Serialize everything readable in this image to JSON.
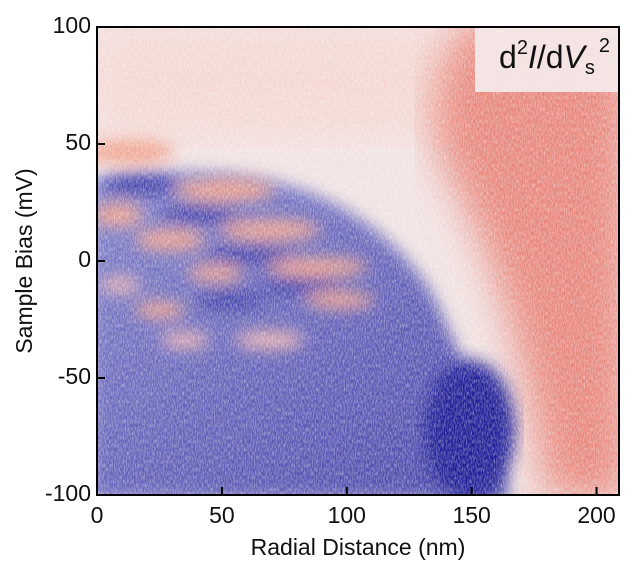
{
  "chart_data": {
    "type": "heatmap",
    "x_label": "Radial Distance (nm)",
    "y_label": "Sample Bias (mV)",
    "annotation": [
      "d",
      "2",
      "I",
      "/d",
      "V",
      "s",
      "2"
    ],
    "xlim": [
      0,
      209
    ],
    "xticks": [
      0,
      50,
      100,
      150,
      200
    ],
    "ylim": [
      -100,
      100
    ],
    "yticks": [
      -100,
      -50,
      0,
      50,
      100
    ],
    "colors": {
      "low": "#2a2a9e",
      "mid": "#ffffff",
      "high": "#d9443a"
    }
  }
}
